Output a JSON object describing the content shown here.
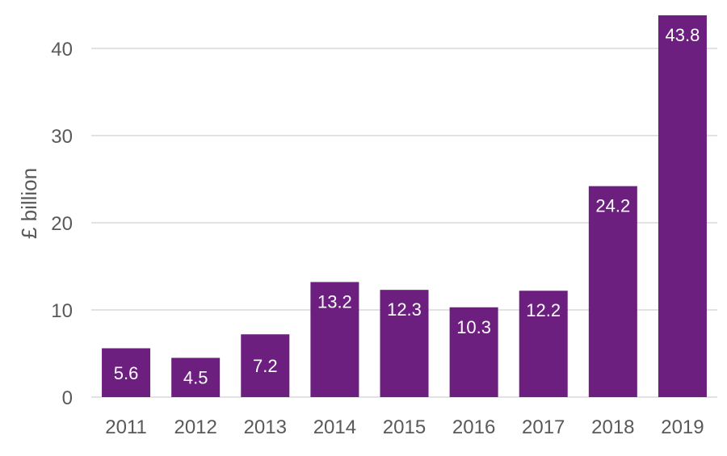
{
  "chart_data": {
    "type": "bar",
    "categories": [
      "2011",
      "2012",
      "2013",
      "2014",
      "2015",
      "2016",
      "2017",
      "2018",
      "2019"
    ],
    "values": [
      5.6,
      4.5,
      7.2,
      13.2,
      12.3,
      10.3,
      12.2,
      24.2,
      43.8
    ],
    "data_labels": [
      "5.6",
      "4.5",
      "7.2",
      "13.2",
      "12.3",
      "10.3",
      "12.2",
      "24.2",
      "43.8"
    ],
    "title": "",
    "xlabel": "",
    "ylabel": "£ billion",
    "ylim": [
      0,
      40
    ],
    "yticks": [
      0,
      10,
      20,
      30,
      40
    ],
    "grid": "horizontal",
    "legend": "none",
    "colors": {
      "bar": "#6d1f80",
      "data_label": "#ffffff",
      "tick_label": "#595959",
      "gridline": "#d9d9d9"
    }
  }
}
